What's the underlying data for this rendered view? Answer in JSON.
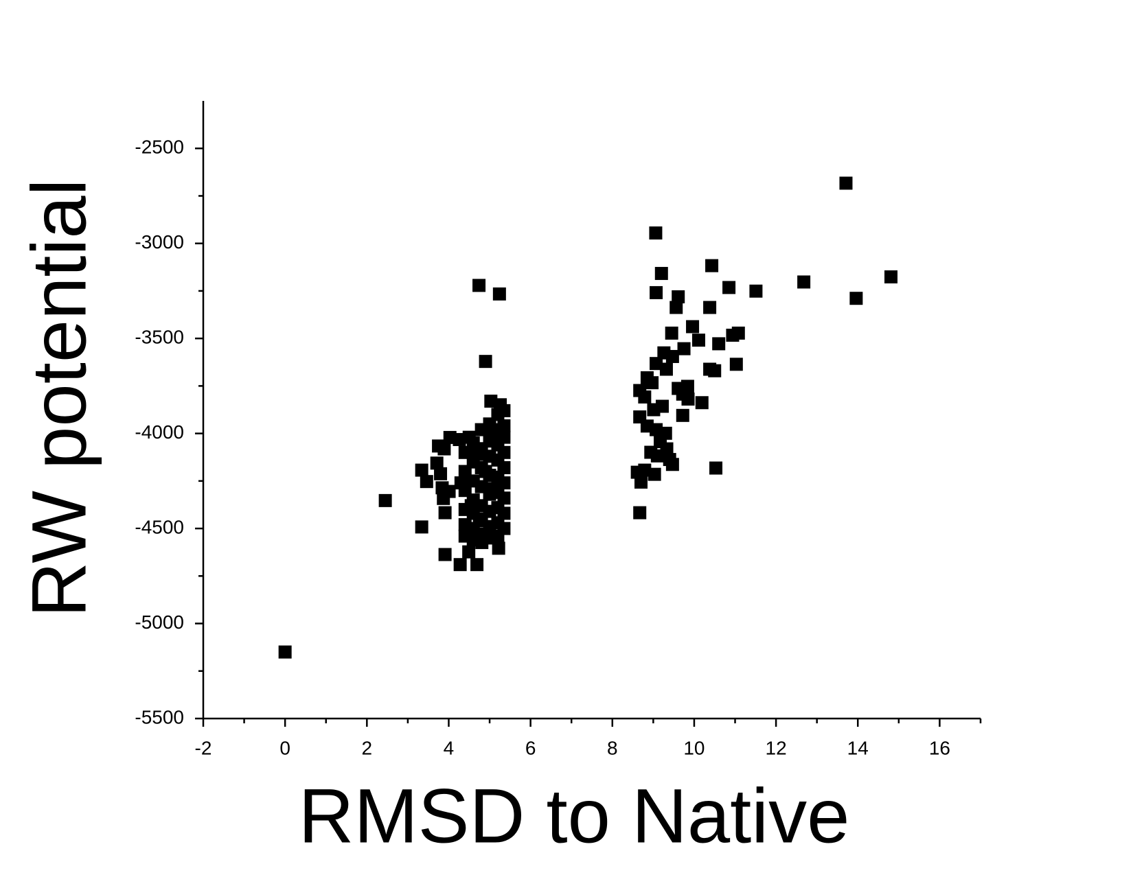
{
  "chart_data": {
    "type": "scatter",
    "x_label": "RMSD to Native",
    "y_label": "RW potential",
    "color": "#000000",
    "xlim": [
      -2,
      17
    ],
    "xticks": [
      -2,
      0,
      2,
      4,
      6,
      8,
      10,
      12,
      14,
      16
    ],
    "ylim": [
      -5500,
      -2250
    ],
    "yticks": [
      -5500,
      -5000,
      -4500,
      -4000,
      -3500,
      -3000,
      -2500
    ],
    "x": [
      0,
      2.45,
      3.34,
      3.91,
      4.28,
      4.69,
      4.49,
      4.74,
      5.24,
      4.9,
      5.03,
      5.26,
      5.22,
      4.81,
      3.34,
      3.46,
      3.75,
      3.89,
      4.03,
      4.26,
      3.71,
      3.8,
      3.87,
      3.91,
      4.01,
      3.84,
      4.4,
      4.4,
      4.4,
      4.4,
      4.4,
      4.4,
      4.6,
      4.6,
      4.6,
      4.6,
      4.6,
      4.6,
      4.6,
      4.8,
      4.8,
      4.8,
      4.8,
      4.8,
      4.8,
      4.8,
      5.0,
      5.0,
      5.0,
      5.0,
      5.0,
      5.0,
      5.0,
      5.0,
      5.2,
      5.2,
      5.2,
      5.2,
      5.2,
      5.2,
      5.2,
      5.2,
      5.2,
      5.35,
      5.35,
      5.35,
      5.35,
      5.35,
      5.35,
      5.35,
      5.35,
      5.35,
      4.5,
      4.7,
      4.9,
      5.1,
      4.3,
      4.55,
      4.75,
      5.05,
      13.71,
      14.81,
      13.96,
      12.68,
      11.51,
      9.06,
      10.43,
      9.2,
      9.07,
      9.61,
      9.56,
      10.85,
      10.38,
      9.96,
      9.45,
      10.11,
      11.08,
      10.94,
      10.6,
      11.03,
      10.38,
      10.5,
      9.75,
      9.26,
      9.47,
      9.07,
      9.32,
      8.85,
      8.97,
      9.84,
      9.61,
      9.72,
      8.67,
      8.79,
      9.85,
      10.19,
      9.22,
      9.01,
      9.72,
      8.67,
      8.85,
      9.07,
      9.3,
      9.17,
      9.33,
      8.94,
      9.1,
      9.4,
      9.47,
      10.53,
      8.79,
      8.61,
      9.03,
      8.7,
      8.67
    ],
    "values": [
      -5150,
      -4353,
      -4492,
      -4637,
      -4690,
      -4690,
      -4623,
      -3221,
      -3266,
      -3621,
      -3830,
      -3849,
      -4604,
      -4574,
      -4193,
      -4253,
      -4066,
      -4081,
      -4021,
      -4032,
      -4156,
      -4212,
      -4342,
      -4417,
      -4305,
      -4286,
      -4100,
      -4200,
      -4300,
      -4400,
      -4480,
      -4540,
      -4050,
      -4150,
      -4250,
      -4350,
      -4420,
      -4500,
      -4560,
      -3980,
      -4080,
      -4180,
      -4280,
      -4380,
      -4460,
      -4530,
      -3950,
      -4040,
      -4120,
      -4220,
      -4320,
      -4410,
      -4490,
      -4550,
      -3900,
      -3980,
      -4060,
      -4140,
      -4230,
      -4310,
      -4390,
      -4470,
      -4540,
      -3880,
      -3960,
      -4020,
      -4100,
      -4180,
      -4260,
      -4340,
      -4420,
      -4500,
      -4020,
      -4110,
      -4200,
      -4290,
      -4260,
      -4380,
      -4450,
      -4000,
      -2683,
      -3176,
      -3289,
      -3203,
      -3251,
      -2945,
      -3117,
      -3158,
      -3259,
      -3281,
      -3337,
      -3232,
      -3337,
      -3438,
      -3472,
      -3509,
      -3472,
      -3483,
      -3528,
      -3636,
      -3662,
      -3670,
      -3554,
      -3576,
      -3595,
      -3632,
      -3662,
      -3707,
      -3733,
      -3752,
      -3763,
      -3793,
      -3774,
      -3808,
      -3819,
      -3838,
      -3857,
      -3875,
      -3905,
      -3913,
      -3961,
      -3980,
      -3999,
      -4043,
      -4081,
      -4099,
      -4118,
      -4137,
      -4163,
      -4182,
      -4193,
      -4204,
      -4215,
      -4256,
      -4417
    ]
  }
}
